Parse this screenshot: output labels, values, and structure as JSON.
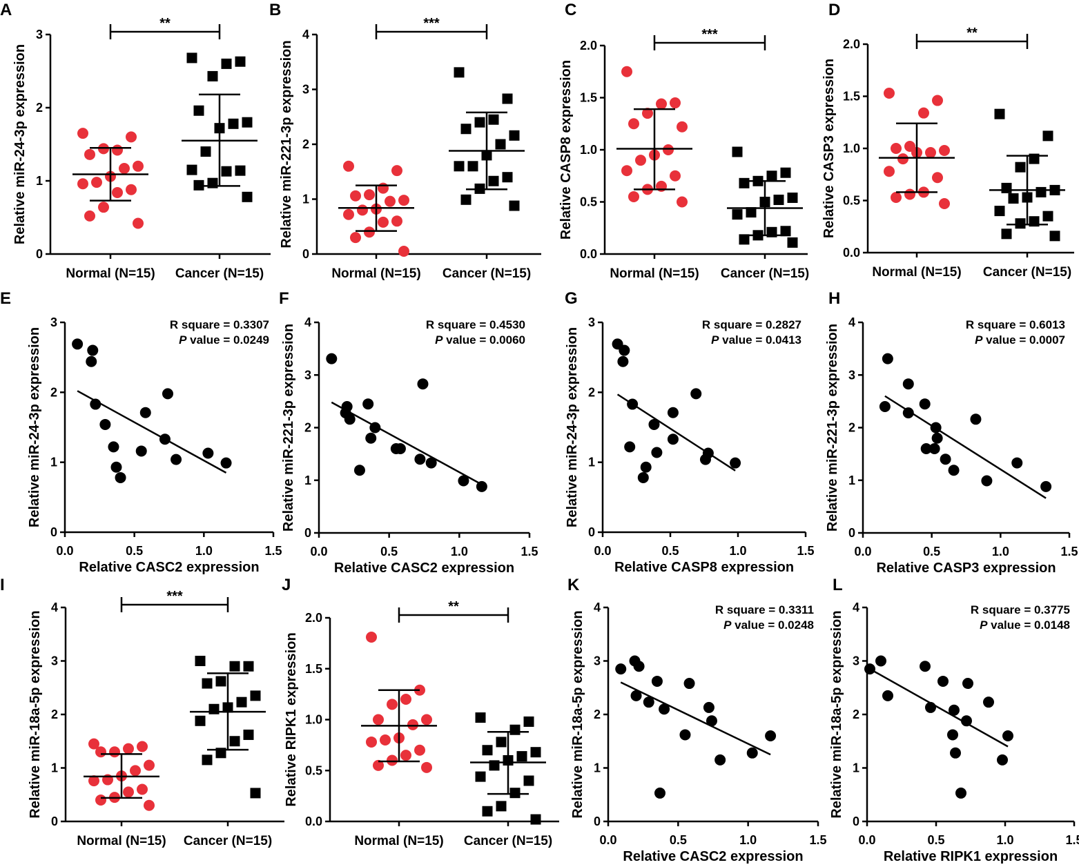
{
  "colors": {
    "normal": "#e8313a",
    "cancer": "#000000",
    "axis": "#000000"
  },
  "chart_data": [
    {
      "id": "A",
      "type": "scatter",
      "ylabel": "Relative miR-24-3p expression",
      "ylim": [
        0,
        3
      ],
      "yticks": [
        "0",
        "1",
        "2",
        "3"
      ],
      "categories": [
        "Normal (N=15)",
        "Cancer (N=15)"
      ],
      "significance": "**",
      "series": [
        {
          "name": "Normal",
          "mean": 1.09,
          "sd_low": 0.73,
          "sd_high": 1.45,
          "values": [
            1.65,
            1.6,
            1.42,
            1.44,
            1.36,
            1.2,
            1.17,
            1.06,
            0.98,
            0.96,
            0.88,
            0.84,
            0.64,
            0.52,
            0.42
          ]
        },
        {
          "name": "Cancer",
          "mean": 1.55,
          "sd_low": 0.93,
          "sd_high": 2.18,
          "values": [
            2.68,
            2.63,
            2.6,
            2.43,
            1.96,
            1.8,
            1.78,
            1.72,
            1.4,
            1.15,
            1.14,
            1.13,
            0.97,
            0.94,
            0.78
          ]
        }
      ]
    },
    {
      "id": "B",
      "type": "scatter",
      "ylabel": "Relative miR-221-3p expression",
      "ylim": [
        0,
        4
      ],
      "yticks": [
        "0",
        "1",
        "2",
        "3",
        "4"
      ],
      "categories": [
        "Normal (N=15)",
        "Cancer (N=15)"
      ],
      "significance": "***",
      "series": [
        {
          "name": "Normal",
          "mean": 0.84,
          "sd_low": 0.42,
          "sd_high": 1.25,
          "values": [
            1.6,
            1.52,
            1.2,
            1.08,
            1.06,
            0.98,
            0.96,
            0.82,
            0.8,
            0.72,
            0.6,
            0.58,
            0.4,
            0.3,
            0.05
          ]
        },
        {
          "name": "Cancer",
          "mean": 1.88,
          "sd_low": 1.18,
          "sd_high": 2.58,
          "values": [
            3.31,
            2.83,
            2.45,
            2.4,
            2.28,
            2.16,
            2.0,
            1.8,
            1.6,
            1.6,
            1.4,
            1.33,
            1.19,
            0.99,
            0.88
          ]
        }
      ]
    },
    {
      "id": "C",
      "type": "scatter",
      "ylabel": "Relative CASP8 expression",
      "ylim": [
        0,
        2
      ],
      "yticks": [
        "0.0",
        "0.5",
        "1.0",
        "1.5",
        "2.0"
      ],
      "categories": [
        "Normal (N=15)",
        "Cancer (N=15)"
      ],
      "significance": "***",
      "series": [
        {
          "name": "Normal",
          "mean": 1.01,
          "sd_low": 0.62,
          "sd_high": 1.39,
          "values": [
            1.75,
            1.45,
            1.44,
            1.35,
            1.25,
            1.22,
            1.0,
            0.95,
            0.9,
            0.8,
            0.75,
            0.65,
            0.62,
            0.55,
            0.5
          ]
        },
        {
          "name": "Cancer",
          "mean": 0.44,
          "sd_low": 0.18,
          "sd_high": 0.7,
          "values": [
            0.98,
            0.78,
            0.75,
            0.7,
            0.68,
            0.54,
            0.52,
            0.5,
            0.4,
            0.38,
            0.22,
            0.21,
            0.18,
            0.14,
            0.11
          ]
        }
      ]
    },
    {
      "id": "D",
      "type": "scatter",
      "ylabel": "Relative CASP3 expression",
      "ylim": [
        0,
        2
      ],
      "yticks": [
        "0.0",
        "0.5",
        "1.0",
        "1.5",
        "2.0"
      ],
      "categories": [
        "Normal (N=15)",
        "Cancer (N=15)"
      ],
      "significance": "**",
      "series": [
        {
          "name": "Normal",
          "mean": 0.91,
          "sd_low": 0.58,
          "sd_high": 1.24,
          "values": [
            1.53,
            1.46,
            1.34,
            1.02,
            1.0,
            0.98,
            0.96,
            0.96,
            0.9,
            0.78,
            0.72,
            0.58,
            0.56,
            0.53,
            0.47
          ]
        },
        {
          "name": "Cancer",
          "mean": 0.6,
          "sd_low": 0.27,
          "sd_high": 0.93,
          "values": [
            1.33,
            1.12,
            0.9,
            0.82,
            0.62,
            0.6,
            0.58,
            0.53,
            0.52,
            0.4,
            0.35,
            0.3,
            0.28,
            0.18,
            0.16
          ]
        }
      ]
    },
    {
      "id": "E",
      "type": "scatter",
      "ylabel": "Relative miR-24-3p expression",
      "xlabel": "Relative CASC2 expression",
      "xlim": [
        0,
        1.5
      ],
      "xticks": [
        "0.0",
        "0.5",
        "1.0",
        "1.5"
      ],
      "ylim": [
        0,
        3
      ],
      "yticks": [
        "0",
        "1",
        "2",
        "3"
      ],
      "r_square": "R square = 0.3307",
      "p_label": "P",
      "p_value": " value = 0.0249",
      "points": [
        [
          0.09,
          2.69
        ],
        [
          0.2,
          2.6
        ],
        [
          0.19,
          2.44
        ],
        [
          0.22,
          1.83
        ],
        [
          0.29,
          1.54
        ],
        [
          0.35,
          1.22
        ],
        [
          0.37,
          0.93
        ],
        [
          0.4,
          0.78
        ],
        [
          0.55,
          1.16
        ],
        [
          0.58,
          1.71
        ],
        [
          0.72,
          1.33
        ],
        [
          0.74,
          1.98
        ],
        [
          0.8,
          1.04
        ],
        [
          1.03,
          1.13
        ],
        [
          1.16,
          0.99
        ]
      ],
      "regression": [
        [
          0.09,
          2.02
        ],
        [
          1.16,
          0.85
        ]
      ]
    },
    {
      "id": "F",
      "type": "scatter",
      "ylabel": "Relative miR-221-3p expression",
      "xlabel": "Relative CASC2 expression",
      "xlim": [
        0,
        1.5
      ],
      "xticks": [
        "0.0",
        "0.5",
        "1.0",
        "1.5"
      ],
      "ylim": [
        0,
        4
      ],
      "yticks": [
        "0",
        "1",
        "2",
        "3",
        "4"
      ],
      "r_square": "R square = 0.4530",
      "p_label": "P",
      "p_value": " value = 0.0060",
      "points": [
        [
          0.09,
          3.31
        ],
        [
          0.2,
          2.4
        ],
        [
          0.19,
          2.28
        ],
        [
          0.22,
          2.16
        ],
        [
          0.29,
          1.19
        ],
        [
          0.35,
          2.45
        ],
        [
          0.37,
          1.8
        ],
        [
          0.4,
          2.0
        ],
        [
          0.55,
          1.6
        ],
        [
          0.58,
          1.6
        ],
        [
          0.72,
          1.4
        ],
        [
          0.74,
          2.83
        ],
        [
          0.8,
          1.33
        ],
        [
          1.03,
          0.99
        ],
        [
          1.16,
          0.88
        ]
      ],
      "regression": [
        [
          0.09,
          2.48
        ],
        [
          1.16,
          0.92
        ]
      ]
    },
    {
      "id": "G",
      "type": "scatter",
      "ylabel": "Relative miR-24-3p expression",
      "xlabel": "Relative CASP8 expression",
      "xlim": [
        0,
        1.5
      ],
      "xticks": [
        "0.0",
        "0.5",
        "1.0",
        "1.5"
      ],
      "ylim": [
        0,
        3
      ],
      "yticks": [
        "0",
        "1",
        "2",
        "3"
      ],
      "r_square": "R square = 0.2827",
      "p_label": "P",
      "p_value": " value = 0.0413",
      "points": [
        [
          0.11,
          2.69
        ],
        [
          0.16,
          2.6
        ],
        [
          0.15,
          2.44
        ],
        [
          0.22,
          1.83
        ],
        [
          0.2,
          1.22
        ],
        [
          0.38,
          1.54
        ],
        [
          0.52,
          1.71
        ],
        [
          0.69,
          1.98
        ],
        [
          0.52,
          1.33
        ],
        [
          0.4,
          1.14
        ],
        [
          0.32,
          0.93
        ],
        [
          0.3,
          0.78
        ],
        [
          0.76,
          1.04
        ],
        [
          0.78,
          1.13
        ],
        [
          0.98,
          0.99
        ]
      ],
      "regression": [
        [
          0.11,
          1.97
        ],
        [
          0.98,
          0.88
        ]
      ]
    },
    {
      "id": "H",
      "type": "scatter",
      "ylabel": "Relative miR-221-3p expression",
      "xlabel": "Relative CASP3 expression",
      "xlim": [
        0,
        1.5
      ],
      "xticks": [
        "0.0",
        "0.5",
        "1.0",
        "1.5"
      ],
      "ylim": [
        0,
        4
      ],
      "yticks": [
        "0",
        "1",
        "2",
        "3",
        "4"
      ],
      "r_square": "R square = 0.6013",
      "p_label": "P",
      "p_value": " value = 0.0007",
      "points": [
        [
          0.18,
          3.31
        ],
        [
          0.33,
          2.83
        ],
        [
          0.16,
          2.4
        ],
        [
          0.33,
          2.28
        ],
        [
          0.45,
          2.45
        ],
        [
          0.53,
          2.0
        ],
        [
          0.54,
          1.8
        ],
        [
          0.46,
          1.6
        ],
        [
          0.52,
          1.6
        ],
        [
          0.6,
          1.4
        ],
        [
          0.66,
          1.19
        ],
        [
          0.82,
          2.16
        ],
        [
          0.9,
          0.99
        ],
        [
          1.12,
          1.33
        ],
        [
          1.33,
          0.88
        ]
      ],
      "regression": [
        [
          0.16,
          2.6
        ],
        [
          1.33,
          0.66
        ]
      ]
    },
    {
      "id": "I",
      "type": "scatter",
      "ylabel": "Relative miR-18a-5p expression",
      "ylim": [
        0,
        4
      ],
      "yticks": [
        "0",
        "1",
        "2",
        "3",
        "4"
      ],
      "categories": [
        "Normal (N=15)",
        "Cancer (N=15)"
      ],
      "significance": "***",
      "series": [
        {
          "name": "Normal",
          "mean": 0.84,
          "sd_low": 0.44,
          "sd_high": 1.26,
          "values": [
            1.45,
            1.4,
            1.36,
            1.3,
            1.3,
            1.05,
            0.95,
            0.85,
            0.78,
            0.76,
            0.6,
            0.55,
            0.45,
            0.4,
            0.3
          ]
        },
        {
          "name": "Cancer",
          "mean": 2.05,
          "sd_low": 1.34,
          "sd_high": 2.77,
          "values": [
            3.0,
            2.9,
            2.9,
            2.62,
            2.58,
            2.35,
            2.23,
            2.13,
            2.1,
            1.88,
            1.62,
            1.5,
            1.28,
            1.15,
            0.53
          ]
        }
      ]
    },
    {
      "id": "J",
      "type": "scatter",
      "ylabel": "Relative RIPK1 expression",
      "ylim": [
        0,
        2
      ],
      "yticks": [
        "0.0",
        "0.5",
        "1.0",
        "1.5",
        "2.0"
      ],
      "categories": [
        "Normal (N=15)",
        "Cancer (N=15)"
      ],
      "significance": "**",
      "series": [
        {
          "name": "Normal",
          "mean": 0.94,
          "sd_low": 0.59,
          "sd_high": 1.29,
          "values": [
            1.81,
            1.29,
            1.2,
            1.15,
            1.0,
            1.0,
            0.95,
            0.82,
            0.8,
            0.78,
            0.7,
            0.65,
            0.6,
            0.55,
            0.53
          ]
        },
        {
          "name": "Cancer",
          "mean": 0.58,
          "sd_low": 0.27,
          "sd_high": 0.88,
          "values": [
            1.02,
            0.98,
            0.9,
            0.78,
            0.7,
            0.68,
            0.64,
            0.6,
            0.55,
            0.44,
            0.4,
            0.28,
            0.15,
            0.1,
            0.02
          ]
        }
      ]
    },
    {
      "id": "K",
      "type": "scatter",
      "ylabel": "Relative miR-18a-5p expression",
      "xlabel": "Relative CASC2 expression",
      "xlim": [
        0,
        1.5
      ],
      "xticks": [
        "0.0",
        "0.5",
        "1.0",
        "1.5"
      ],
      "ylim": [
        0,
        4
      ],
      "yticks": [
        "0",
        "1",
        "2",
        "3",
        "4"
      ],
      "r_square": "R square = 0.3311",
      "p_label": "P",
      "p_value": " value = 0.0248",
      "points": [
        [
          0.09,
          2.85
        ],
        [
          0.19,
          3.0
        ],
        [
          0.22,
          2.9
        ],
        [
          0.2,
          2.35
        ],
        [
          0.29,
          2.23
        ],
        [
          0.35,
          2.62
        ],
        [
          0.4,
          2.1
        ],
        [
          0.37,
          0.53
        ],
        [
          0.55,
          1.62
        ],
        [
          0.58,
          2.58
        ],
        [
          0.72,
          2.13
        ],
        [
          0.74,
          1.88
        ],
        [
          0.8,
          1.15
        ],
        [
          1.03,
          1.28
        ],
        [
          1.16,
          1.6
        ]
      ],
      "regression": [
        [
          0.09,
          2.6
        ],
        [
          1.16,
          1.25
        ]
      ]
    },
    {
      "id": "L",
      "type": "scatter",
      "ylabel": "Relative miR-18a-5p expression",
      "xlabel": "Relative RIPK1 expression",
      "xlim": [
        0,
        1.5
      ],
      "xticks": [
        "0.0",
        "0.5",
        "1.0",
        "1.5"
      ],
      "ylim": [
        0,
        4
      ],
      "yticks": [
        "0",
        "1",
        "2",
        "3",
        "4"
      ],
      "r_square": "R square = 0.3775",
      "p_label": "P",
      "p_value": " value = 0.0148",
      "points": [
        [
          0.02,
          2.85
        ],
        [
          0.1,
          3.0
        ],
        [
          0.15,
          2.35
        ],
        [
          0.42,
          2.9
        ],
        [
          0.46,
          2.13
        ],
        [
          0.55,
          2.62
        ],
        [
          0.62,
          1.62
        ],
        [
          0.63,
          2.08
        ],
        [
          0.64,
          1.28
        ],
        [
          0.68,
          0.53
        ],
        [
          0.72,
          1.88
        ],
        [
          0.73,
          2.58
        ],
        [
          0.88,
          2.23
        ],
        [
          0.98,
          1.15
        ],
        [
          1.02,
          1.6
        ]
      ],
      "regression": [
        [
          0.02,
          2.85
        ],
        [
          1.02,
          1.4
        ]
      ]
    }
  ]
}
